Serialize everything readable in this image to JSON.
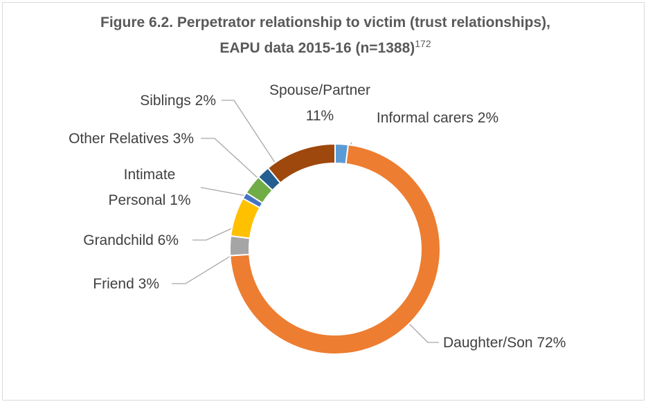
{
  "chart_data": {
    "type": "donut",
    "title": "Figure 6.2. Perpetrator relationship to victim (trust relationships), EAPU data 2015-16 (n=1388)",
    "title_superscript": "172",
    "categories": [
      "Informal carers",
      "Daughter/Son",
      "Friend",
      "Grandchild",
      "Intimate Personal",
      "Other Relatives",
      "Siblings",
      "Spouse/Partner"
    ],
    "values": [
      2,
      72,
      3,
      6,
      1,
      3,
      2,
      11
    ],
    "value_labels": [
      "2%",
      "72%",
      "3%",
      "6%",
      "1%",
      "3%",
      "2%",
      "11%"
    ],
    "colors": [
      "#5b9bd5",
      "#ed7d31",
      "#a5a5a5",
      "#ffc000",
      "#4472c4",
      "#70ad47",
      "#255e91",
      "#9e480e"
    ]
  }
}
